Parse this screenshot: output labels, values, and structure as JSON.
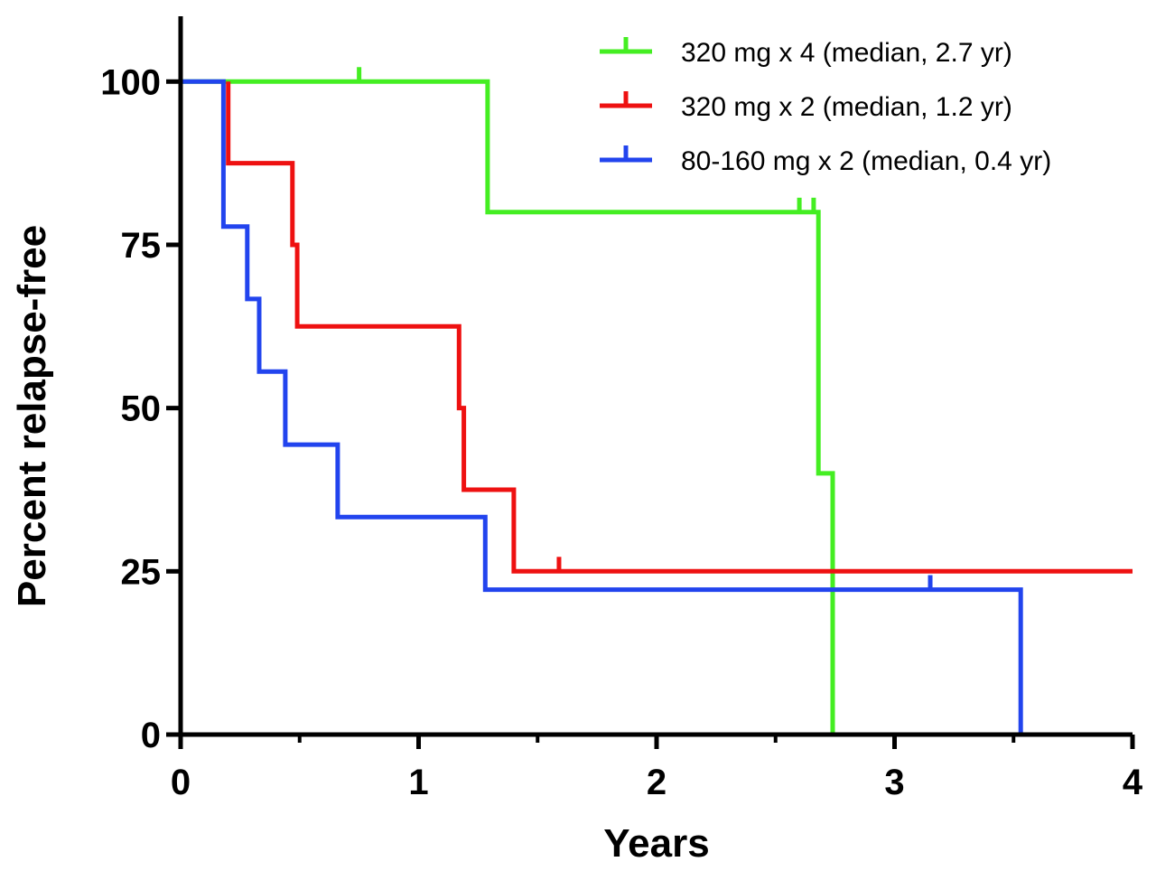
{
  "chart_data": {
    "type": "line",
    "subtype": "kaplan-meier step",
    "title": "",
    "xlabel": "Years",
    "ylabel": "Percent relapse-free",
    "xlim": [
      0,
      4
    ],
    "ylim": [
      0,
      110
    ],
    "x_ticks": [
      0,
      1,
      2,
      3,
      4
    ],
    "x_minor_ticks": [
      0.5,
      1.5,
      2.5,
      3.5
    ],
    "y_ticks": [
      0,
      25,
      50,
      75,
      100
    ],
    "grid": false,
    "legend_position": "top-right",
    "series": [
      {
        "name": "320 mg x 4 (median, 2.7 yr)",
        "color": "#44ee22",
        "points": [
          [
            0,
            100
          ],
          [
            1.29,
            100
          ],
          [
            1.29,
            80
          ],
          [
            2.68,
            80
          ],
          [
            2.68,
            40
          ],
          [
            2.74,
            40
          ],
          [
            2.74,
            0
          ]
        ],
        "censored": [
          [
            0.75,
            100
          ],
          [
            2.6,
            80
          ],
          [
            2.66,
            80
          ]
        ]
      },
      {
        "name": "320 mg x 2 (median, 1.2 yr)",
        "color": "#ee1111",
        "points": [
          [
            0.2,
            100
          ],
          [
            0.2,
            87.5
          ],
          [
            0.47,
            87.5
          ],
          [
            0.47,
            75
          ],
          [
            0.49,
            75
          ],
          [
            0.49,
            62.5
          ],
          [
            1.17,
            62.5
          ],
          [
            1.17,
            50
          ],
          [
            1.19,
            50
          ],
          [
            1.19,
            37.5
          ],
          [
            1.4,
            37.5
          ],
          [
            1.4,
            25
          ],
          [
            4,
            25
          ]
        ],
        "censored": [
          [
            1.59,
            25
          ]
        ]
      },
      {
        "name": "80-160 mg x 2 (median, 0.4 yr)",
        "color": "#2244ee",
        "points": [
          [
            0,
            100
          ],
          [
            0.18,
            100
          ],
          [
            0.18,
            77.8
          ],
          [
            0.28,
            77.8
          ],
          [
            0.28,
            66.7
          ],
          [
            0.33,
            66.7
          ],
          [
            0.33,
            55.6
          ],
          [
            0.44,
            55.6
          ],
          [
            0.44,
            44.4
          ],
          [
            0.66,
            44.4
          ],
          [
            0.66,
            33.3
          ],
          [
            1.28,
            33.3
          ],
          [
            1.28,
            22.2
          ],
          [
            3.53,
            22.2
          ],
          [
            3.53,
            0
          ]
        ],
        "censored": [
          [
            3.15,
            22.2
          ]
        ]
      }
    ]
  }
}
